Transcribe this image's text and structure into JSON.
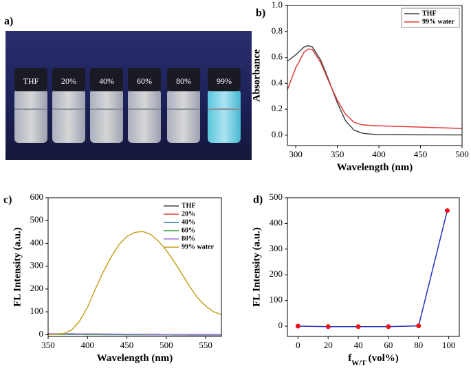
{
  "photo": {
    "label": "a)",
    "vial_labels": [
      "THF",
      "20%",
      "40%",
      "60%",
      "80%",
      "99%"
    ]
  },
  "chart_data": [
    {
      "type": "line",
      "label": "b)",
      "xlabel": "Wavelength (nm)",
      "ylabel": "Absorbance",
      "xlim": [
        290,
        500
      ],
      "xticks": [
        300,
        350,
        400,
        450,
        500
      ],
      "ylim": [
        -0.08,
        1.0
      ],
      "yticks": [
        {
          "value": 0,
          "label": "0.0"
        },
        0.2,
        0.4,
        0.6,
        0.8,
        {
          "value": 1,
          "label": "1.0"
        }
      ],
      "legend": "upper right",
      "legend_frame": true,
      "x": [
        290,
        300,
        310,
        315,
        320,
        330,
        340,
        350,
        360,
        370,
        380,
        390,
        400,
        450,
        500
      ],
      "series": [
        {
          "name": "THF",
          "color": "#444444",
          "values": [
            0.57,
            0.62,
            0.68,
            0.69,
            0.68,
            0.58,
            0.42,
            0.25,
            0.11,
            0.04,
            0.015,
            0.008,
            0.005,
            0.003,
            0.002
          ]
        },
        {
          "name": "99% water",
          "color": "#e03a3a",
          "values": [
            0.35,
            0.52,
            0.64,
            0.665,
            0.66,
            0.56,
            0.41,
            0.27,
            0.16,
            0.1,
            0.08,
            0.075,
            0.072,
            0.062,
            0.052
          ]
        }
      ]
    },
    {
      "type": "line",
      "label": "c)",
      "xlabel": "Wavelength (nm)",
      "ylabel": "FL Intensity (a.u.)",
      "xlim": [
        350,
        570
      ],
      "xticks": [
        350,
        400,
        450,
        500,
        550
      ],
      "ylim": [
        -8,
        600
      ],
      "yticks": [
        0,
        100,
        200,
        300,
        400,
        500,
        600
      ],
      "legend": "upper right",
      "legend_frame": false,
      "x": [
        350,
        360,
        370,
        380,
        390,
        400,
        410,
        420,
        430,
        440,
        450,
        460,
        470,
        480,
        490,
        500,
        510,
        520,
        530,
        540,
        550,
        560,
        570
      ],
      "series": [
        {
          "name": "THF",
          "color": "#444444",
          "values": [
            3,
            3,
            3,
            3,
            2,
            2,
            2,
            2,
            2,
            1,
            1,
            1,
            1,
            1,
            1,
            0,
            0,
            0,
            0,
            0,
            0,
            0,
            0
          ]
        },
        {
          "name": "20%",
          "color": "#e03a3a",
          "values": [
            2,
            2,
            2,
            2,
            2,
            1,
            1,
            1,
            1,
            1,
            0,
            0,
            0,
            0,
            0,
            0,
            -1,
            -1,
            -1,
            -1,
            -1,
            -1,
            -1
          ]
        },
        {
          "name": "40%",
          "color": "#3070c0",
          "values": [
            2,
            2,
            2,
            1,
            1,
            1,
            1,
            0,
            0,
            0,
            0,
            0,
            -1,
            -1,
            -1,
            -1,
            -1,
            -1,
            -2,
            -2,
            -2,
            -2,
            -2
          ]
        },
        {
          "name": "60%",
          "color": "#30a040",
          "values": [
            1,
            1,
            1,
            1,
            1,
            0,
            0,
            0,
            0,
            0,
            -1,
            -1,
            -1,
            -1,
            -1,
            -1,
            -2,
            -2,
            -2,
            -2,
            -2,
            -2,
            -2
          ]
        },
        {
          "name": "80%",
          "color": "#a070e0",
          "values": [
            4,
            4,
            4,
            4,
            3,
            3,
            3,
            2,
            2,
            2,
            1,
            1,
            1,
            0,
            0,
            0,
            0,
            -1,
            -1,
            -1,
            -1,
            -1,
            -1
          ]
        },
        {
          "name": "99% water",
          "color": "#c8a020",
          "values": [
            0,
            2,
            5,
            20,
            60,
            120,
            200,
            275,
            340,
            395,
            430,
            448,
            452,
            440,
            410,
            370,
            320,
            265,
            210,
            160,
            125,
            100,
            88
          ]
        }
      ]
    },
    {
      "type": "line",
      "label": "d)",
      "xlabel": "f",
      "xlabel_sub": "W/T",
      "xlabel_suffix": "(vol%)",
      "ylabel": "FL Intensity (a.u.)",
      "xlim": [
        -7,
        107
      ],
      "xticks": [
        0,
        20,
        40,
        60,
        80,
        100
      ],
      "ylim": [
        -40,
        500
      ],
      "yticks": [
        0,
        100,
        200,
        300,
        400,
        500
      ],
      "marker_color": "#e8141c",
      "x": [
        0,
        20,
        40,
        60,
        80,
        99
      ],
      "series": [
        {
          "color": "#2030c0",
          "values": [
            0,
            -2,
            -2,
            -2,
            1,
            450
          ]
        }
      ]
    }
  ]
}
